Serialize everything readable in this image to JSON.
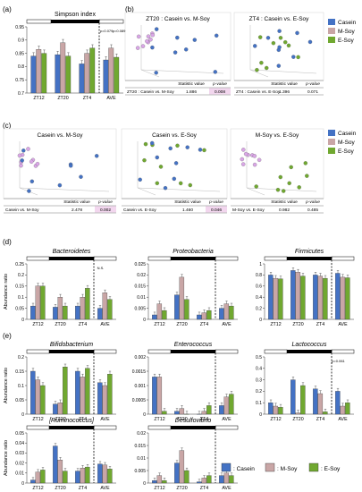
{
  "colors": {
    "casein": "#4472c4",
    "msoy": "#c9a6a6",
    "esoy": "#70a830",
    "pink_pt": "#d9a6e6",
    "box_border": "#d9d9d9",
    "pval_highlight": "#f2d6ee"
  },
  "legend": {
    "casein": "Casein",
    "msoy": "M-Soy",
    "esoy": "E-Soy",
    "bottom_casein": ": Casein",
    "bottom_msoy": ": M-Soy",
    "bottom_esoy": ": E-Soy"
  },
  "panel_letters": {
    "a": "(a)",
    "b": "(b)",
    "c": "(c)",
    "d": "(d)",
    "e": "(e)"
  },
  "groups": [
    "ZT12",
    "ZT20",
    "ZT4",
    "AVE"
  ],
  "pcoa": {
    "stat_header": "Statistic value",
    "p_header": "p-value",
    "plots": [
      {
        "title": "ZT20 : Casein vs. M-Soy",
        "row_label": "ZT20 : Casein vs. M-Soy",
        "stat": "1.886",
        "p": "0.008",
        "highlight": true
      },
      {
        "title": "ZT4 : Casein vs. E-Soy",
        "row_label": "ZT4 : Casein vs. E-Soy",
        "stat": "1.396",
        "p": "0.071",
        "highlight": false
      },
      {
        "title": "Casein vs. M-Soy",
        "row_label": "Casein vs. M-Soy",
        "stat": "2.478",
        "p": "0.002",
        "highlight": true
      },
      {
        "title": "Casein vs. E-Soy",
        "row_label": "Casein vs. E-Soy",
        "stat": "1.460",
        "p": "0.046",
        "highlight": true
      },
      {
        "title": "M-Soy vs. E-Soy",
        "row_label": "M-Soy vs. E-Soy",
        "stat": "0.982",
        "p": "0.485",
        "highlight": false
      }
    ]
  },
  "chart_data": [
    {
      "type": "bar",
      "title": "Simpson index",
      "ylabel": "",
      "ylim": [
        0.7,
        0.95
      ],
      "yticks": [
        "0.7",
        "0.75",
        "0.8",
        "0.85",
        "0.9",
        "0.95"
      ],
      "categories": [
        "ZT12",
        "ZT20",
        "ZT4",
        "AVE"
      ],
      "series": [
        {
          "name": "Casein",
          "values": [
            0.84,
            0.845,
            0.81,
            0.825
          ]
        },
        {
          "name": "M-Soy",
          "values": [
            0.865,
            0.89,
            0.85,
            0.87
          ]
        },
        {
          "name": "E-Soy",
          "values": [
            0.85,
            0.84,
            0.87,
            0.835
          ]
        }
      ],
      "annotations": [
        "p=0.079",
        "p=0.089"
      ]
    },
    {
      "type": "bar",
      "title": "Bacteroidetes",
      "ylabel": "Abundance ratio",
      "ylim": [
        0,
        0.25
      ],
      "yticks": [
        "0",
        "0.05",
        "0.1",
        "0.15",
        "0.2",
        "0.25"
      ],
      "categories": [
        "ZT12",
        "ZT20",
        "ZT4",
        "AVE"
      ],
      "series": [
        {
          "name": "Casein",
          "values": [
            0.06,
            0.055,
            0.06,
            0.05
          ]
        },
        {
          "name": "M-Soy",
          "values": [
            0.15,
            0.1,
            0.1,
            0.12
          ]
        },
        {
          "name": "E-Soy",
          "values": [
            0.15,
            0.06,
            0.14,
            0.09
          ]
        }
      ],
      "annotations": [
        "N.S."
      ]
    },
    {
      "type": "bar",
      "title": "Proteobacteria",
      "ylabel": "",
      "ylim": [
        0,
        0.025
      ],
      "yticks": [
        "0",
        "0.005",
        "0.01",
        "0.015",
        "0.02",
        "0.025"
      ],
      "categories": [
        "ZT12",
        "ZT20",
        "ZT4",
        "AVE"
      ],
      "series": [
        {
          "name": "Casein",
          "values": [
            0.002,
            0.011,
            0.002,
            0.005
          ]
        },
        {
          "name": "M-Soy",
          "values": [
            0.007,
            0.019,
            0.003,
            0.007
          ]
        },
        {
          "name": "E-Soy",
          "values": [
            0.004,
            0.009,
            0.004,
            0.006
          ]
        }
      ],
      "annotations": []
    },
    {
      "type": "bar",
      "title": "Firmicutes",
      "ylabel": "",
      "ylim": [
        0,
        1
      ],
      "yticks": [
        "0",
        "0.2",
        "0.4",
        "0.6",
        "0.8",
        "1"
      ],
      "categories": [
        "ZT12",
        "ZT20",
        "ZT4",
        "AVE"
      ],
      "series": [
        {
          "name": "Casein",
          "values": [
            0.8,
            0.88,
            0.8,
            0.83
          ]
        },
        {
          "name": "M-Soy",
          "values": [
            0.74,
            0.85,
            0.78,
            0.76
          ]
        },
        {
          "name": "E-Soy",
          "values": [
            0.73,
            0.78,
            0.74,
            0.75
          ]
        }
      ],
      "annotations": []
    },
    {
      "type": "bar",
      "title": "Bifidobacterium",
      "ylabel": "Abundance ratio",
      "ylim": [
        0,
        0.2
      ],
      "yticks": [
        "0",
        "0.05",
        "0.1",
        "0.15",
        "0.2"
      ],
      "categories": [
        "ZT12",
        "ZT20",
        "ZT4",
        "AVE"
      ],
      "series": [
        {
          "name": "Casein",
          "values": [
            0.15,
            0.035,
            0.15,
            0.11
          ]
        },
        {
          "name": "M-Soy",
          "values": [
            0.12,
            0.04,
            0.13,
            0.1
          ]
        },
        {
          "name": "E-Soy",
          "values": [
            0.1,
            0.165,
            0.16,
            0.14
          ]
        }
      ],
      "annotations": []
    },
    {
      "type": "bar",
      "title": "Enterococcus",
      "ylabel": "",
      "ylim": [
        0,
        0.002
      ],
      "yticks": [
        "0",
        "0.0005",
        "0.001",
        "0.0015",
        "0.002"
      ],
      "categories": [
        "ZT12",
        "ZT20",
        "ZT4",
        "AVE"
      ],
      "series": [
        {
          "name": "Casein",
          "values": [
            0.0013,
            0.0001,
            0.0,
            0.0003
          ]
        },
        {
          "name": "M-Soy",
          "values": [
            0.0013,
            0.0002,
            0.0001,
            0.0006
          ]
        },
        {
          "name": "E-Soy",
          "values": [
            0.0001,
            0.0,
            0.0003,
            0.0007
          ]
        }
      ],
      "annotations": []
    },
    {
      "type": "bar",
      "title": "Lactococcus",
      "ylabel": "",
      "ylim": [
        0,
        0.5
      ],
      "yticks": [
        "0",
        "0.1",
        "0.2",
        "0.3",
        "0.4",
        "0.5"
      ],
      "categories": [
        "ZT12",
        "ZT20",
        "ZT4",
        "AVE"
      ],
      "series": [
        {
          "name": "Casein",
          "values": [
            0.1,
            0.3,
            0.22,
            0.2
          ]
        },
        {
          "name": "M-Soy",
          "values": [
            0.07,
            0.01,
            0.18,
            0.07
          ]
        },
        {
          "name": "E-Soy",
          "values": [
            0.06,
            0.25,
            0.02,
            0.1
          ]
        }
      ],
      "annotations": [
        "p=0.061"
      ]
    },
    {
      "type": "bar",
      "title": "[Ruminococcus]",
      "ylabel": "Abundance ratio",
      "ylim": [
        0,
        0.05
      ],
      "yticks": [
        "0",
        "0.01",
        "0.02",
        "0.03",
        "0.04",
        "0.05"
      ],
      "categories": [
        "ZT12",
        "ZT20",
        "ZT4",
        "AVE"
      ],
      "series": [
        {
          "name": "Casein",
          "values": [
            0.003,
            0.037,
            0.012,
            0.019
          ]
        },
        {
          "name": "M-Soy",
          "values": [
            0.011,
            0.023,
            0.015,
            0.018
          ]
        },
        {
          "name": "E-Soy",
          "values": [
            0.013,
            0.012,
            0.016,
            0.014
          ]
        }
      ],
      "annotations": []
    },
    {
      "type": "bar",
      "title": "Desulfovibrio",
      "ylabel": "",
      "ylim": [
        0,
        0.02
      ],
      "yticks": [
        "0",
        "0.005",
        "0.01",
        "0.015",
        "0.02"
      ],
      "categories": [
        "ZT12",
        "ZT20",
        "ZT4",
        "AVE"
      ],
      "series": [
        {
          "name": "Casein",
          "values": [
            0.001,
            0.008,
            0.0005,
            0.003
          ]
        },
        {
          "name": "M-Soy",
          "values": [
            0.003,
            0.013,
            0.002,
            0.004
          ]
        },
        {
          "name": "E-Soy",
          "values": [
            0.001,
            0.005,
            0.003,
            0.003
          ]
        }
      ],
      "annotations": []
    }
  ]
}
